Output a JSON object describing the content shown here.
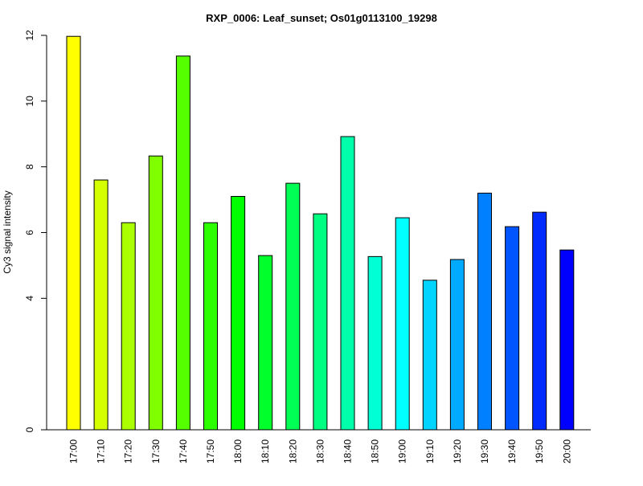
{
  "chart_data": {
    "type": "bar",
    "title": "RXP_0006: Leaf_sunset; Os01g0113100_19298",
    "xlabel": "",
    "ylabel": "Cy3 signal intensity",
    "categories": [
      "17:00",
      "17:10",
      "17:20",
      "17:30",
      "17:40",
      "17:50",
      "18:00",
      "18:10",
      "18:20",
      "18:30",
      "18:40",
      "18:50",
      "19:00",
      "19:10",
      "19:20",
      "19:30",
      "19:40",
      "19:50",
      "20:00"
    ],
    "values": [
      11.97,
      7.6,
      6.3,
      8.33,
      11.37,
      6.3,
      7.1,
      5.3,
      7.5,
      6.57,
      8.92,
      5.27,
      6.45,
      4.55,
      5.18,
      7.2,
      6.18,
      6.62,
      5.47
    ],
    "colors": [
      "#ffff00",
      "#d4ff00",
      "#aaff00",
      "#80ff00",
      "#55ff00",
      "#2bff00",
      "#00ff00",
      "#00ff2b",
      "#00ff55",
      "#00ff80",
      "#00ffaa",
      "#00ffd4",
      "#00ffff",
      "#00d4ff",
      "#00aaff",
      "#0080ff",
      "#0055ff",
      "#002bff",
      "#0000ff"
    ],
    "y_ticks": [
      "0",
      "4",
      "6",
      "8",
      "10",
      "12"
    ],
    "ylim": [
      0,
      12
    ],
    "grid": false,
    "legend": "none"
  }
}
